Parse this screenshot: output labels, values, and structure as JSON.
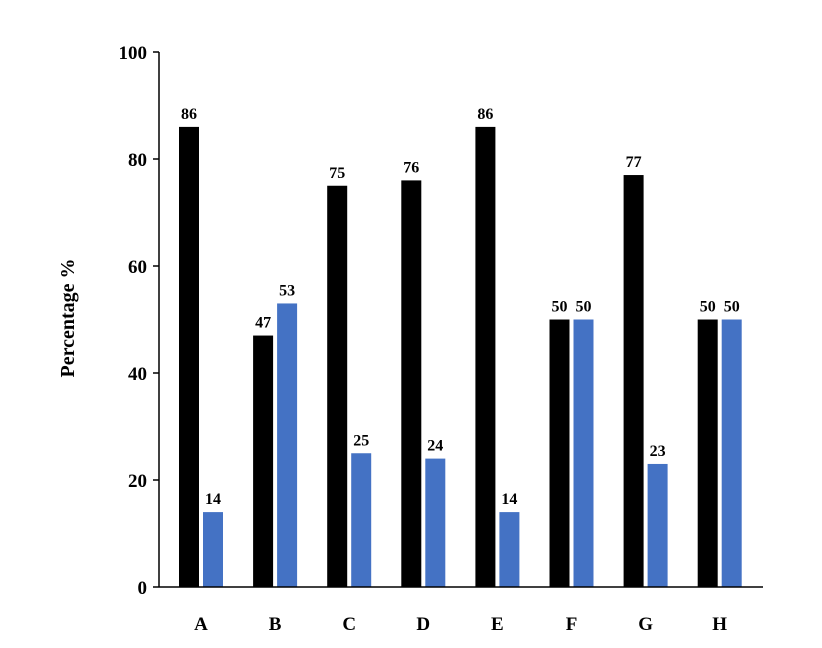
{
  "chart_data": {
    "type": "bar",
    "title": "",
    "xlabel": "",
    "ylabel": "Percentage %",
    "ylim": [
      0,
      100
    ],
    "yticks": [
      0,
      20,
      40,
      60,
      80,
      100
    ],
    "grid": false,
    "legend": "none",
    "categories": [
      "A",
      "B",
      "C",
      "D",
      "E",
      "F",
      "G",
      "H"
    ],
    "series": [
      {
        "color": "#000000",
        "values": [
          86,
          47,
          75,
          76,
          86,
          50,
          77,
          50
        ]
      },
      {
        "color": "#4472c4",
        "values": [
          14,
          53,
          25,
          24,
          14,
          50,
          23,
          50
        ]
      }
    ]
  }
}
